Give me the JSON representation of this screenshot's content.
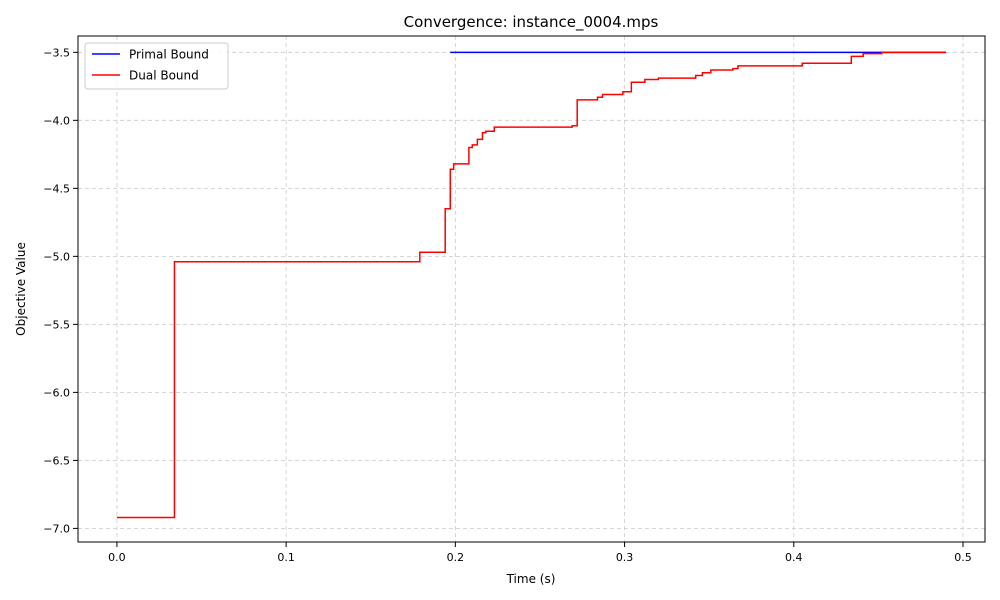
{
  "chart_data": {
    "type": "line",
    "title": "Convergence: instance_0004.mps",
    "xlabel": "Time (s)",
    "ylabel": "Objective Value",
    "xlim": [
      -0.023,
      0.513
    ],
    "ylim": [
      -7.1,
      -3.38
    ],
    "xticks": [
      0.0,
      0.1,
      0.2,
      0.3,
      0.4,
      0.5
    ],
    "xtick_labels": [
      "0.0",
      "0.1",
      "0.2",
      "0.3",
      "0.4",
      "0.5"
    ],
    "yticks": [
      -7.0,
      -6.5,
      -6.0,
      -5.5,
      -5.0,
      -4.5,
      -4.0,
      -3.5
    ],
    "ytick_labels": [
      "−7.0",
      "−6.5",
      "−6.0",
      "−5.5",
      "−5.0",
      "−4.5",
      "−4.0",
      "−3.5"
    ],
    "grid": true,
    "legend_position": "upper-left",
    "step": "post",
    "series": [
      {
        "name": "Primal Bound",
        "color": "#0000ff",
        "x": [
          0.197,
          0.49
        ],
        "y": [
          -3.5,
          -3.5
        ]
      },
      {
        "name": "Dual Bound",
        "color": "#ff0000",
        "x": [
          0.0,
          0.034,
          0.179,
          0.194,
          0.197,
          0.199,
          0.208,
          0.21,
          0.213,
          0.216,
          0.218,
          0.223,
          0.269,
          0.272,
          0.284,
          0.287,
          0.299,
          0.304,
          0.312,
          0.32,
          0.342,
          0.346,
          0.351,
          0.364,
          0.367,
          0.405,
          0.434,
          0.441,
          0.452,
          0.49
        ],
        "y": [
          -6.92,
          -5.04,
          -4.97,
          -4.65,
          -4.36,
          -4.32,
          -4.2,
          -4.18,
          -4.14,
          -4.09,
          -4.08,
          -4.05,
          -4.04,
          -3.85,
          -3.83,
          -3.81,
          -3.79,
          -3.72,
          -3.7,
          -3.69,
          -3.67,
          -3.65,
          -3.63,
          -3.62,
          -3.6,
          -3.58,
          -3.53,
          -3.51,
          -3.5,
          -3.5
        ]
      }
    ]
  }
}
